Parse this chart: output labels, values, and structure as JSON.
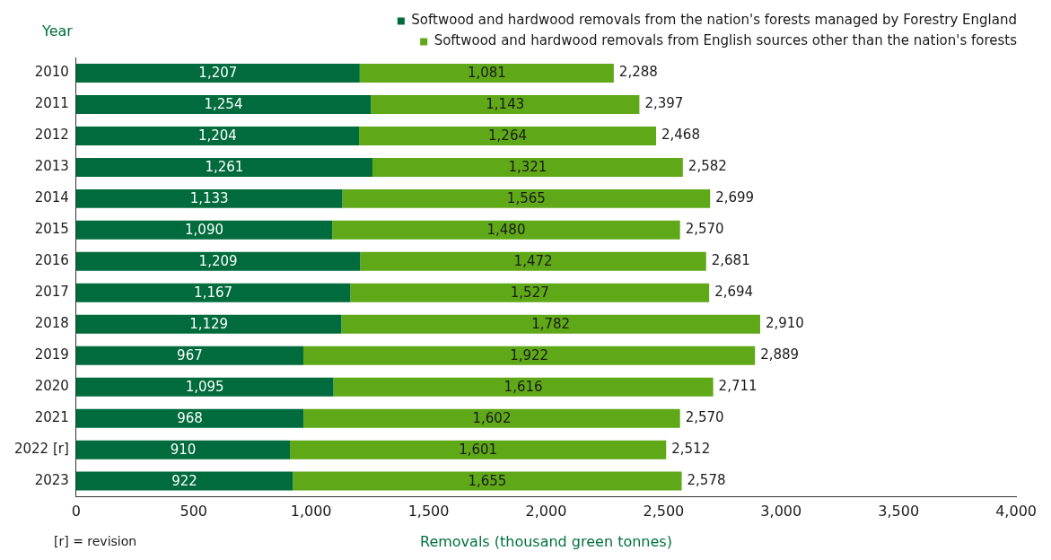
{
  "chart_data": {
    "type": "bar",
    "orientation": "horizontal",
    "stacked": true,
    "ylabel": "Year",
    "xlabel": "Removals (thousand green tonnes)",
    "annotations": [
      "[r] = revision"
    ],
    "categories": [
      "2010",
      "2011",
      "2012",
      "2013",
      "2014",
      "2015",
      "2016",
      "2017",
      "2018",
      "2019",
      "2020",
      "2021",
      "2022 [r]",
      "2023"
    ],
    "series": [
      {
        "name": "Softwood and hardwood removals from the nation's forests managed by Forestry England",
        "color": "#006b3c",
        "values": [
          1207,
          1254,
          1204,
          1261,
          1133,
          1090,
          1209,
          1167,
          1129,
          967,
          1095,
          968,
          910,
          922
        ],
        "value_labels": [
          "1,207",
          "1,254",
          "1,204",
          "1,261",
          "1,133",
          "1,090",
          "1,209",
          "1,167",
          "1,129",
          "967",
          "1,095",
          "968",
          "910",
          "922"
        ]
      },
      {
        "name": "Softwood and hardwood removals from English sources other than the nation's forests",
        "color": "#5fa818",
        "values": [
          1081,
          1143,
          1264,
          1321,
          1565,
          1480,
          1472,
          1527,
          1782,
          1922,
          1616,
          1602,
          1601,
          1655
        ],
        "value_labels": [
          "1,081",
          "1,143",
          "1,264",
          "1,321",
          "1,565",
          "1,480",
          "1,472",
          "1,527",
          "1,782",
          "1,922",
          "1,616",
          "1,602",
          "1,601",
          "1,655"
        ]
      }
    ],
    "totals": [
      "2,288",
      "2,397",
      "2,468",
      "2,582",
      "2,699",
      "2,570",
      "2,681",
      "2,694",
      "2,910",
      "2,889",
      "2,711",
      "2,570",
      "2,512",
      "2,578"
    ],
    "xlim": [
      0,
      4000
    ],
    "xticks": [
      {
        "value": 0,
        "label": "0"
      },
      {
        "value": 500,
        "label": "500"
      },
      {
        "value": 1000,
        "label": "1,000"
      },
      {
        "value": 1500,
        "label": "1,500"
      },
      {
        "value": 2000,
        "label": "2,000"
      },
      {
        "value": 2500,
        "label": "2,500"
      },
      {
        "value": 3000,
        "label": "3,000"
      },
      {
        "value": 3500,
        "label": "3,500"
      },
      {
        "value": 4000,
        "label": "4,000"
      }
    ],
    "grid": false,
    "legend": "top right"
  }
}
